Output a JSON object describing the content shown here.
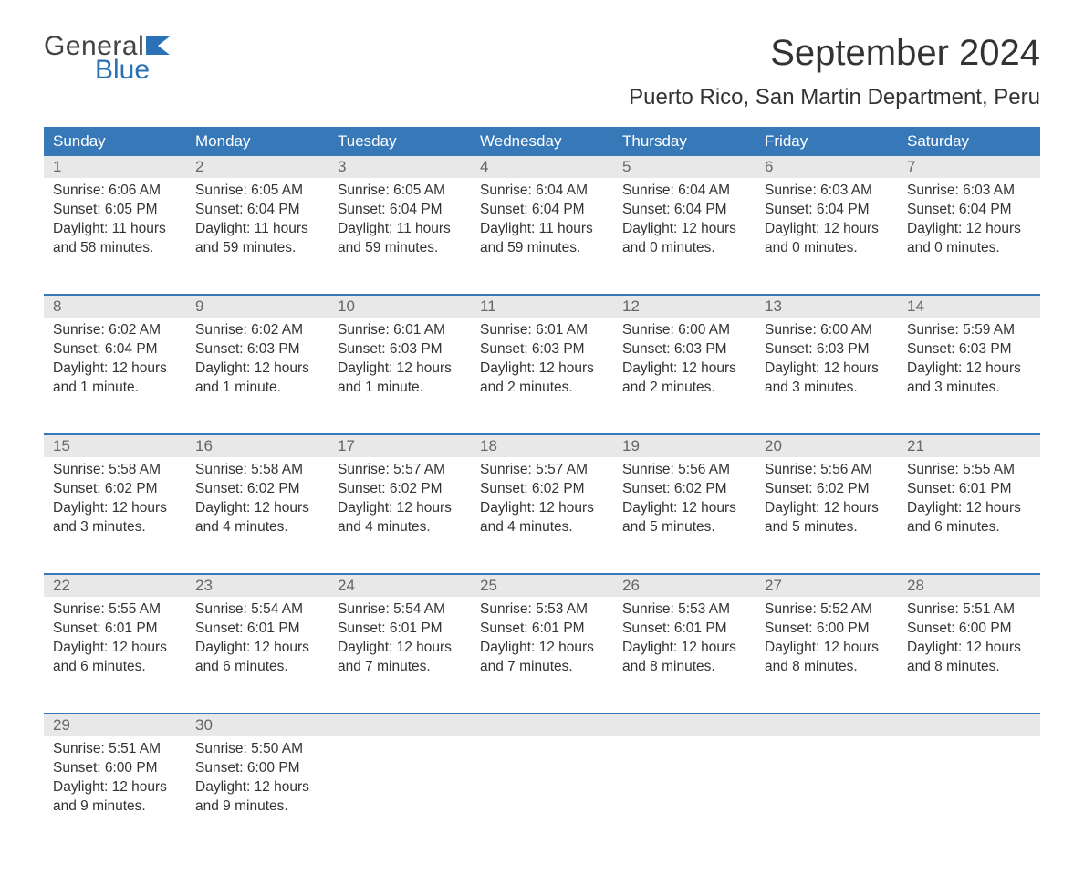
{
  "logo": {
    "top": "General",
    "bottom": "Blue",
    "flag_color": "#2a72b5"
  },
  "title": "September 2024",
  "location": "Puerto Rico, San Martin Department, Peru",
  "colors": {
    "header_bg": "#3678b8",
    "header_text": "#ffffff",
    "daynum_bg": "#e8e8e8",
    "daynum_text": "#666666",
    "rule": "#3678b8",
    "body_text": "#333333",
    "page_bg": "#ffffff"
  },
  "column_headers": [
    "Sunday",
    "Monday",
    "Tuesday",
    "Wednesday",
    "Thursday",
    "Friday",
    "Saturday"
  ],
  "labels": {
    "sunrise": "Sunrise:",
    "sunset": "Sunset:",
    "daylight": "Daylight:"
  },
  "weeks": [
    [
      {
        "day": "1",
        "sunrise": "6:06 AM",
        "sunset": "6:05 PM",
        "daylight": "11 hours and 58 minutes."
      },
      {
        "day": "2",
        "sunrise": "6:05 AM",
        "sunset": "6:04 PM",
        "daylight": "11 hours and 59 minutes."
      },
      {
        "day": "3",
        "sunrise": "6:05 AM",
        "sunset": "6:04 PM",
        "daylight": "11 hours and 59 minutes."
      },
      {
        "day": "4",
        "sunrise": "6:04 AM",
        "sunset": "6:04 PM",
        "daylight": "11 hours and 59 minutes."
      },
      {
        "day": "5",
        "sunrise": "6:04 AM",
        "sunset": "6:04 PM",
        "daylight": "12 hours and 0 minutes."
      },
      {
        "day": "6",
        "sunrise": "6:03 AM",
        "sunset": "6:04 PM",
        "daylight": "12 hours and 0 minutes."
      },
      {
        "day": "7",
        "sunrise": "6:03 AM",
        "sunset": "6:04 PM",
        "daylight": "12 hours and 0 minutes."
      }
    ],
    [
      {
        "day": "8",
        "sunrise": "6:02 AM",
        "sunset": "6:04 PM",
        "daylight": "12 hours and 1 minute."
      },
      {
        "day": "9",
        "sunrise": "6:02 AM",
        "sunset": "6:03 PM",
        "daylight": "12 hours and 1 minute."
      },
      {
        "day": "10",
        "sunrise": "6:01 AM",
        "sunset": "6:03 PM",
        "daylight": "12 hours and 1 minute."
      },
      {
        "day": "11",
        "sunrise": "6:01 AM",
        "sunset": "6:03 PM",
        "daylight": "12 hours and 2 minutes."
      },
      {
        "day": "12",
        "sunrise": "6:00 AM",
        "sunset": "6:03 PM",
        "daylight": "12 hours and 2 minutes."
      },
      {
        "day": "13",
        "sunrise": "6:00 AM",
        "sunset": "6:03 PM",
        "daylight": "12 hours and 3 minutes."
      },
      {
        "day": "14",
        "sunrise": "5:59 AM",
        "sunset": "6:03 PM",
        "daylight": "12 hours and 3 minutes."
      }
    ],
    [
      {
        "day": "15",
        "sunrise": "5:58 AM",
        "sunset": "6:02 PM",
        "daylight": "12 hours and 3 minutes."
      },
      {
        "day": "16",
        "sunrise": "5:58 AM",
        "sunset": "6:02 PM",
        "daylight": "12 hours and 4 minutes."
      },
      {
        "day": "17",
        "sunrise": "5:57 AM",
        "sunset": "6:02 PM",
        "daylight": "12 hours and 4 minutes."
      },
      {
        "day": "18",
        "sunrise": "5:57 AM",
        "sunset": "6:02 PM",
        "daylight": "12 hours and 4 minutes."
      },
      {
        "day": "19",
        "sunrise": "5:56 AM",
        "sunset": "6:02 PM",
        "daylight": "12 hours and 5 minutes."
      },
      {
        "day": "20",
        "sunrise": "5:56 AM",
        "sunset": "6:02 PM",
        "daylight": "12 hours and 5 minutes."
      },
      {
        "day": "21",
        "sunrise": "5:55 AM",
        "sunset": "6:01 PM",
        "daylight": "12 hours and 6 minutes."
      }
    ],
    [
      {
        "day": "22",
        "sunrise": "5:55 AM",
        "sunset": "6:01 PM",
        "daylight": "12 hours and 6 minutes."
      },
      {
        "day": "23",
        "sunrise": "5:54 AM",
        "sunset": "6:01 PM",
        "daylight": "12 hours and 6 minutes."
      },
      {
        "day": "24",
        "sunrise": "5:54 AM",
        "sunset": "6:01 PM",
        "daylight": "12 hours and 7 minutes."
      },
      {
        "day": "25",
        "sunrise": "5:53 AM",
        "sunset": "6:01 PM",
        "daylight": "12 hours and 7 minutes."
      },
      {
        "day": "26",
        "sunrise": "5:53 AM",
        "sunset": "6:01 PM",
        "daylight": "12 hours and 8 minutes."
      },
      {
        "day": "27",
        "sunrise": "5:52 AM",
        "sunset": "6:00 PM",
        "daylight": "12 hours and 8 minutes."
      },
      {
        "day": "28",
        "sunrise": "5:51 AM",
        "sunset": "6:00 PM",
        "daylight": "12 hours and 8 minutes."
      }
    ],
    [
      {
        "day": "29",
        "sunrise": "5:51 AM",
        "sunset": "6:00 PM",
        "daylight": "12 hours and 9 minutes."
      },
      {
        "day": "30",
        "sunrise": "5:50 AM",
        "sunset": "6:00 PM",
        "daylight": "12 hours and 9 minutes."
      },
      null,
      null,
      null,
      null,
      null
    ]
  ]
}
